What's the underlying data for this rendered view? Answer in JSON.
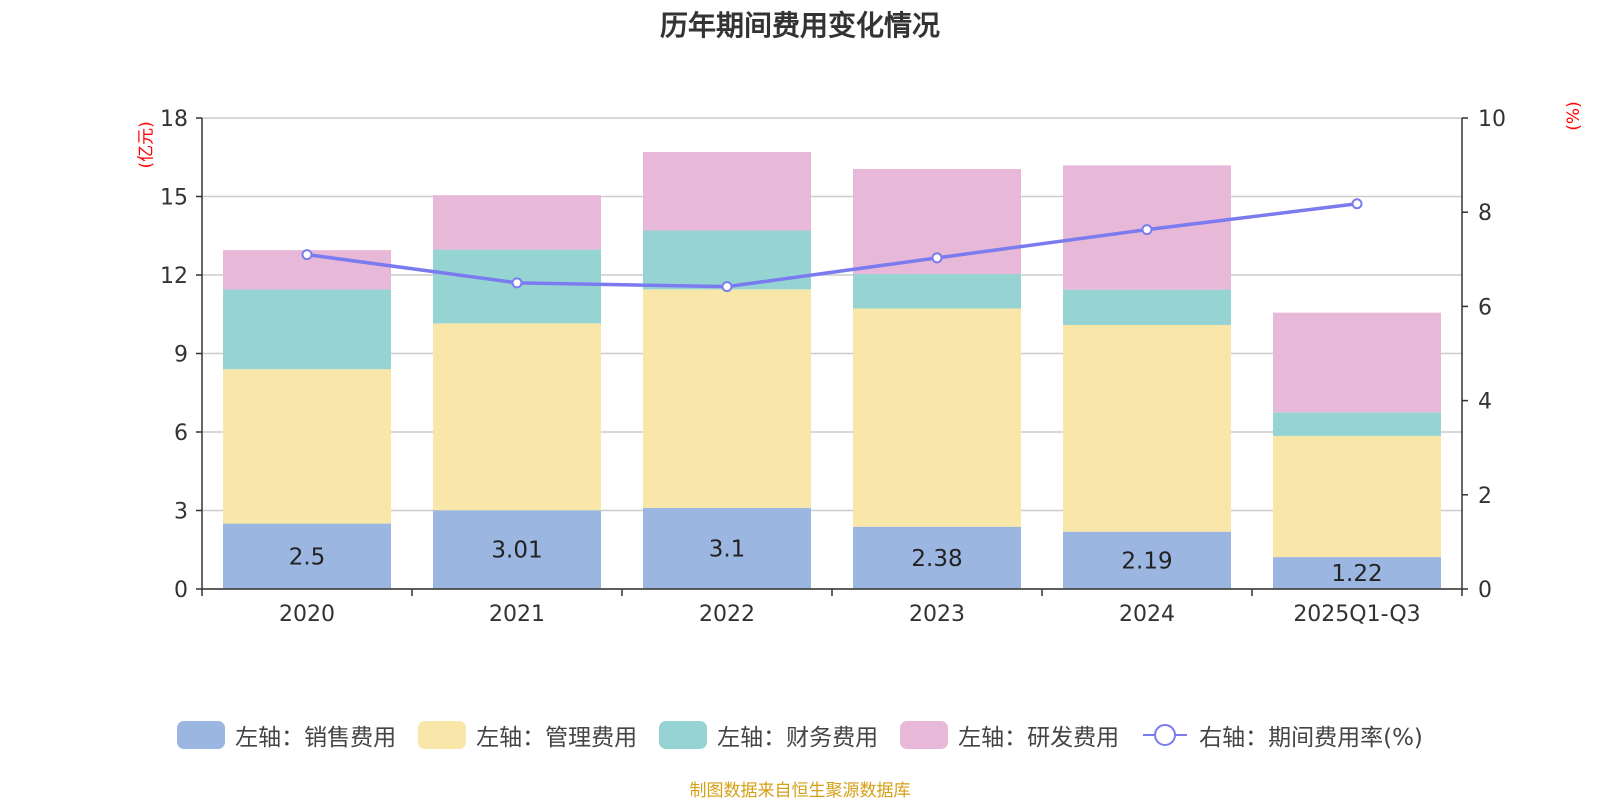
{
  "chart_data": {
    "type": "bar",
    "title": "历年期间费用变化情况",
    "categories": [
      "2020",
      "2021",
      "2022",
      "2023",
      "2024",
      "2025Q1-Q3"
    ],
    "left_axis": {
      "unit": "(亿元)",
      "ylim": [
        0,
        18
      ],
      "ticks": [
        0,
        3,
        6,
        9,
        12,
        15,
        18
      ]
    },
    "right_axis": {
      "unit": "(%)",
      "ylim": [
        0,
        10
      ],
      "ticks": [
        0,
        2,
        4,
        6,
        8,
        10
      ]
    },
    "series": [
      {
        "name": "左轴：销售费用",
        "kind": "bar",
        "color": "#9bb6e0",
        "values": [
          2.5,
          3.01,
          3.1,
          2.38,
          2.19,
          1.22
        ],
        "labels": [
          "2.5",
          "3.01",
          "3.1",
          "2.38",
          "2.19",
          "1.22"
        ]
      },
      {
        "name": "左轴：管理费用",
        "kind": "bar",
        "color": "#f8e7a8",
        "values": [
          5.9,
          7.14,
          8.35,
          8.34,
          7.9,
          4.63
        ]
      },
      {
        "name": "左轴：财务费用",
        "kind": "bar",
        "color": "#96d4d4",
        "values": [
          3.05,
          2.82,
          2.25,
          1.32,
          1.35,
          0.9
        ]
      },
      {
        "name": "左轴：研发费用",
        "kind": "bar",
        "color": "#e7b8d8",
        "values": [
          1.5,
          2.08,
          3.0,
          4.01,
          4.75,
          3.81
        ]
      },
      {
        "name": "右轴：期间费用率(%)",
        "kind": "line",
        "color": "#7b7bf0",
        "values": [
          7.1,
          6.5,
          6.42,
          7.03,
          7.63,
          8.18
        ]
      }
    ],
    "source": "制图数据来自恒生聚源数据库"
  }
}
